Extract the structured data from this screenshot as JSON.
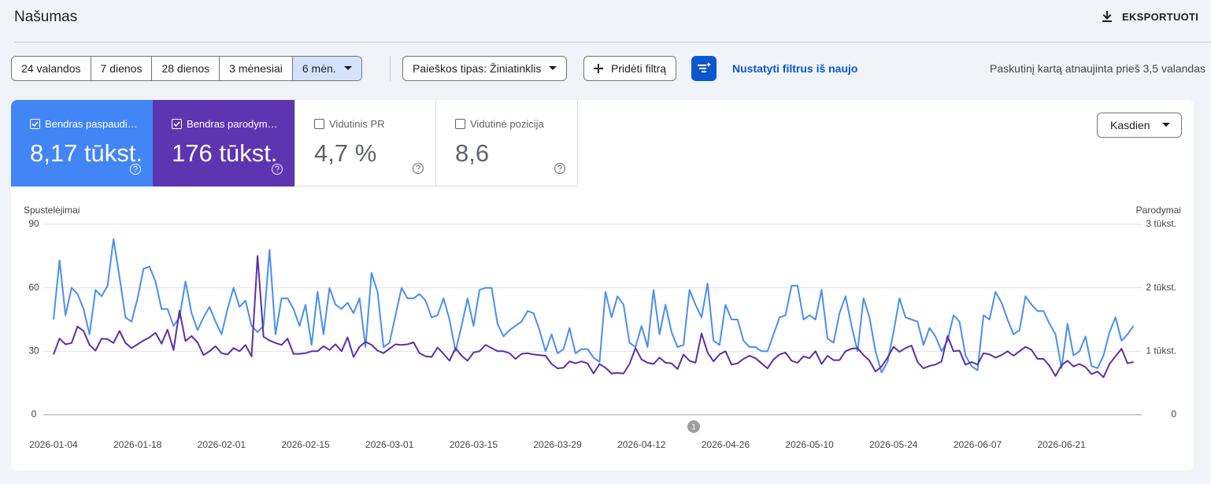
{
  "header": {
    "title": "Našumas",
    "export": "EKSPORTUOTI"
  },
  "filters": {
    "ranges": [
      "24 valandos",
      "7 dienos",
      "28 dienos",
      "3 mėnesiai",
      "6 mėn."
    ],
    "search_type": "Paieškos tipas: Žiniatinklis",
    "add_filter": "Pridėti filtrą",
    "reset": "Nustatyti filtrus iš naujo",
    "updated": "Paskutinį kartą atnaujinta prieš 3,5 valandas"
  },
  "metrics": [
    {
      "value": "8,17 tūkst."
    },
    {
      "value": "176 tūkst."
    },
    {
      "label": "Vidutinis PR",
      "value": "4,7 %"
    },
    {
      "label": "Vidutinė pozicija",
      "value": "8,6"
    }
  ],
  "interval": "Kasdien",
  "chart_data": {
    "type": "line",
    "y_label": "Spustelėjimai",
    "y2_label": "Parodymai",
    "annotation": "1",
    "categories": [
      "2026-01-04",
      null,
      null,
      null,
      null,
      null,
      null,
      null,
      null,
      null,
      null,
      null,
      null,
      null,
      "2026-01-18",
      null,
      null,
      null,
      null,
      null,
      null,
      null,
      null,
      null,
      null,
      null,
      null,
      null,
      "2026-02-01",
      null,
      null,
      null,
      null,
      null,
      null,
      null,
      null,
      null,
      null,
      null,
      null,
      null,
      "2026-02-15",
      null,
      null,
      null,
      null,
      null,
      null,
      null,
      null,
      null,
      null,
      null,
      null,
      null,
      "2026-03-01",
      null,
      null,
      null,
      null,
      null,
      null,
      null,
      null,
      null,
      null,
      null,
      null,
      null,
      "2026-03-15",
      null,
      null,
      null,
      null,
      null,
      null,
      null,
      null,
      null,
      null,
      null,
      null,
      null,
      "2026-03-29",
      null,
      null,
      null,
      null,
      null,
      null,
      null,
      null,
      null,
      null,
      null,
      null,
      null,
      "2026-04-12",
      null,
      null,
      null,
      null,
      null,
      null,
      null,
      null,
      null,
      null,
      null,
      null,
      null,
      "2026-04-26",
      null,
      null,
      null,
      null,
      null,
      null,
      null,
      null,
      null,
      null,
      null,
      null,
      null,
      "2026-05-10",
      null,
      null,
      null,
      null,
      null,
      null,
      null,
      null,
      null,
      null,
      null,
      null,
      null,
      "2026-05-24",
      null,
      null,
      null,
      null,
      null,
      null,
      null,
      null,
      null,
      null,
      null,
      null,
      null,
      "2026-06-07",
      null,
      null,
      null,
      null,
      null,
      null,
      null,
      null,
      null,
      null,
      null,
      null,
      null,
      "2026-06-21",
      null,
      null,
      null,
      null,
      null,
      null,
      null,
      null,
      null,
      null,
      null,
      null
    ],
    "series": [
      {
        "name": "Bendras paspaudi…",
        "color": "#4a8ff0",
        "values": [
          45,
          73,
          47,
          60,
          57,
          50,
          38,
          59,
          56,
          61,
          83,
          65,
          46,
          44,
          55,
          69,
          70,
          63,
          50,
          50,
          42,
          46,
          63,
          48,
          40,
          46,
          51,
          44,
          38,
          50,
          60,
          51,
          54,
          42,
          39,
          42,
          78,
          38,
          55,
          55,
          50,
          42,
          52,
          33,
          58,
          38,
          60,
          52,
          50,
          53,
          48,
          55,
          32,
          67,
          58,
          32,
          34,
          47,
          60,
          55,
          55,
          57,
          54,
          46,
          47,
          55,
          45,
          30,
          42,
          55,
          42,
          59,
          60,
          60,
          43,
          37,
          40,
          42,
          44,
          49,
          48,
          40,
          30,
          38,
          29,
          31,
          41,
          29,
          31,
          31,
          27,
          25,
          58,
          46,
          56,
          52,
          34,
          32,
          42,
          32,
          59,
          38,
          52,
          39,
          32,
          33,
          59,
          52,
          46,
          62,
          35,
          33,
          52,
          45,
          45,
          35,
          32,
          32,
          30,
          30,
          38,
          46,
          47,
          61,
          61,
          45,
          47,
          45,
          59,
          36,
          34,
          48,
          56,
          42,
          30,
          55,
          46,
          30,
          20,
          25,
          39,
          55,
          46,
          45,
          44,
          33,
          41,
          37,
          30,
          35,
          47,
          44,
          28,
          23,
          21,
          47,
          45,
          58,
          53,
          45,
          38,
          40,
          56,
          52,
          49,
          49,
          43,
          38,
          22,
          43,
          28,
          30,
          37,
          23,
          22,
          28,
          39,
          46,
          35,
          38,
          42
        ]
      },
      {
        "name": "Bendras parodym…",
        "color": "#5e2fa8",
        "axis": "y2",
        "values": [
          950,
          1200,
          1110,
          1130,
          1390,
          1320,
          1100,
          1010,
          1200,
          1190,
          1130,
          1320,
          1130,
          1050,
          1110,
          1170,
          1220,
          1290,
          1120,
          1340,
          1020,
          1640,
          1160,
          1240,
          1140,
          940,
          1000,
          1080,
          970,
          950,
          1050,
          1000,
          1100,
          920,
          2500,
          1230,
          1170,
          1130,
          1100,
          1200,
          960,
          960,
          970,
          1000,
          1000,
          1080,
          1020,
          1110,
          1000,
          1220,
          910,
          1070,
          1150,
          1100,
          1010,
          970,
          1040,
          1110,
          1100,
          1110,
          1140,
          970,
          920,
          910,
          1060,
          960,
          850,
          1050,
          930,
          850,
          980,
          1000,
          1100,
          1050,
          1000,
          1000,
          970,
          880,
          960,
          970,
          950,
          940,
          930,
          800,
          730,
          740,
          840,
          810,
          840,
          810,
          650,
          800,
          740,
          650,
          660,
          650,
          800,
          1050,
          870,
          820,
          800,
          900,
          820,
          810,
          720,
          950,
          850,
          820,
          1280,
          980,
          840,
          950,
          1000,
          790,
          810,
          880,
          930,
          890,
          810,
          730,
          870,
          950,
          980,
          850,
          820,
          920,
          890,
          1000,
          800,
          930,
          860,
          860,
          1000,
          1040,
          1050,
          940,
          850,
          680,
          760,
          900,
          1070,
          990,
          1050,
          1090,
          830,
          730,
          770,
          790,
          840,
          1240,
          1000,
          1010,
          790,
          830,
          790,
          970,
          950,
          900,
          940,
          1000,
          930,
          1000,
          1070,
          1020,
          880,
          880,
          770,
          610,
          780,
          850,
          760,
          800,
          750,
          640,
          680,
          590,
          800,
          920,
          1040,
          810,
          830
        ]
      }
    ],
    "ylim": [
      0,
      90
    ],
    "yticks": [
      0,
      30,
      60,
      90
    ],
    "y2lim": [
      0,
      3000
    ],
    "y2ticks": [
      0,
      {
        "value": 1000,
        "label": "1 tūkst."
      },
      {
        "value": 2000,
        "label": "2 tūkst."
      },
      {
        "value": 3000,
        "label": "3 tūkst."
      }
    ],
    "grid": true
  }
}
